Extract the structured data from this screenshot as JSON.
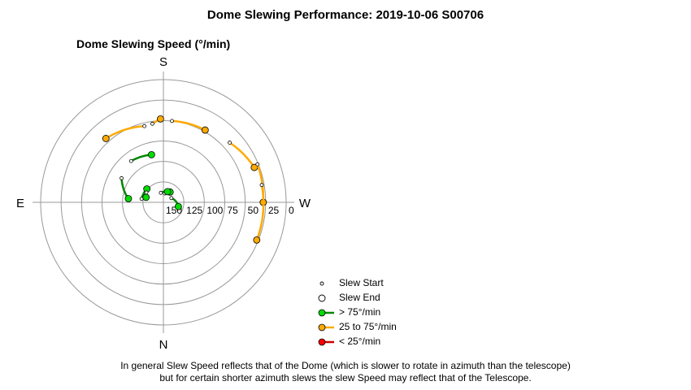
{
  "title": "Dome Slewing Performance: 2019-10-06 S00706",
  "chart_data": {
    "type": "polar",
    "title": "Dome Slewing Speed (°/min)",
    "direction_labels": {
      "top": "S",
      "bottom": "N",
      "left": "E",
      "right": "W"
    },
    "radial_axis": {
      "min": 0,
      "max": 150,
      "inverted": true,
      "ticks": [
        150,
        125,
        100,
        75,
        50,
        25,
        0
      ]
    },
    "legend": [
      {
        "key": "start",
        "label": "Slew Start"
      },
      {
        "key": "end",
        "label": "Slew End"
      },
      {
        "key": "fast",
        "label": "> 75°/min",
        "color": "#00dd00",
        "line": "#008800"
      },
      {
        "key": "medium",
        "label": "25 to 75°/min",
        "color": "#ffaa00",
        "line": "#ffaa00"
      },
      {
        "key": "slow",
        "label": "< 25°/min",
        "color": "#ff0000",
        "line": "#cc0000"
      }
    ],
    "slews": [
      {
        "category": "medium",
        "start": {
          "azimuth": 172,
          "speed": 53
        },
        "end": {
          "azimuth": 178,
          "speed": 48
        }
      },
      {
        "category": "medium",
        "start": {
          "azimuth": 166,
          "speed": 54
        },
        "end": {
          "azimuth": 138,
          "speed": 45
        }
      },
      {
        "category": "medium",
        "start": {
          "azimuth": 186,
          "speed": 50
        },
        "end": {
          "azimuth": 210,
          "speed": 48
        }
      },
      {
        "category": "medium",
        "start": {
          "azimuth": 228,
          "speed": 41
        },
        "end": {
          "azimuth": 249,
          "speed": 31
        }
      },
      {
        "category": "medium",
        "start": {
          "azimuth": 248,
          "speed": 26
        },
        "end": {
          "azimuth": 270,
          "speed": 28
        }
      },
      {
        "category": "medium",
        "start": {
          "azimuth": 260,
          "speed": 28
        },
        "end": {
          "azimuth": 292,
          "speed": 27
        }
      },
      {
        "category": "fast",
        "start": {
          "azimuth": 142,
          "speed": 86
        },
        "end": {
          "azimuth": 166,
          "speed": 90
        }
      },
      {
        "category": "fast",
        "start": {
          "azimuth": 120,
          "speed": 91
        },
        "end": {
          "azimuth": 96,
          "speed": 107
        }
      },
      {
        "category": "fast",
        "start": {
          "azimuth": 99,
          "speed": 123
        },
        "end": {
          "azimuth": 129,
          "speed": 124
        }
      },
      {
        "category": "fast",
        "start": {
          "azimuth": 120,
          "speed": 126
        },
        "end": {
          "azimuth": 106,
          "speed": 128
        }
      },
      {
        "category": "fast",
        "start": {
          "azimuth": 165,
          "speed": 138
        },
        "end": {
          "azimuth": 213,
          "speed": 135
        }
      },
      {
        "category": "fast",
        "start": {
          "azimuth": 242,
          "speed": 139
        },
        "end": {
          "azimuth": 286,
          "speed": 131
        }
      },
      {
        "category": "fast",
        "start": {
          "azimuth": 189,
          "speed": 139
        },
        "end": {
          "azimuth": 201,
          "speed": 136
        }
      }
    ]
  },
  "footnote": [
    "In general Slew Speed reflects that of the Dome (which is slower to rotate in azimuth than the telescope)",
    "but for certain shorter azimuth slews the slew Speed may reflect that of the Telescope."
  ]
}
